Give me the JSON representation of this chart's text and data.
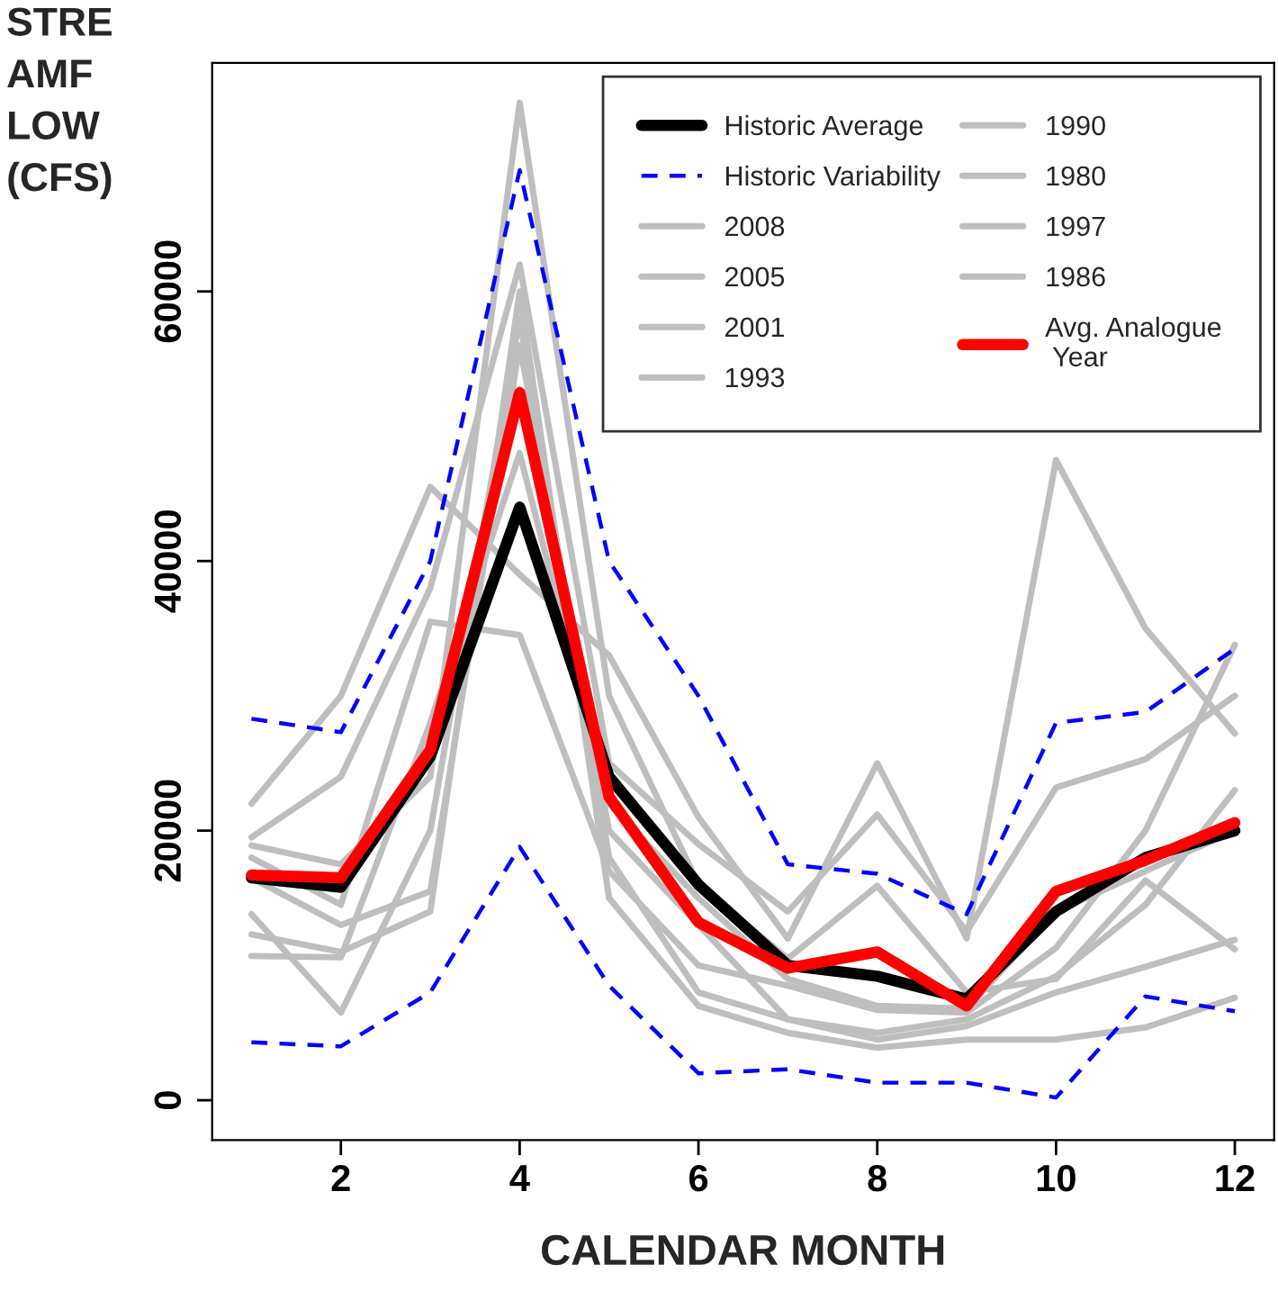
{
  "chart_data": {
    "type": "line",
    "xlabel": "CALENDAR MONTH",
    "ylabel": "STRE\nAMF\nLOW\n(CFS)",
    "x": [
      1,
      2,
      3,
      4,
      5,
      6,
      7,
      8,
      9,
      10,
      11,
      12
    ],
    "xlim": [
      0.56,
      12.44
    ],
    "xticks": [
      2,
      4,
      6,
      8,
      10,
      12
    ],
    "ylim": [
      -2960,
      76960
    ],
    "yticks": [
      0,
      20000,
      40000,
      60000
    ],
    "grid": false,
    "legend": "top right",
    "marker": "none",
    "series": [
      {
        "name": "Historic Average",
        "color": "#000000",
        "line_style": "solid",
        "values": [
          16500,
          15800,
          25500,
          44000,
          24000,
          16000,
          10000,
          9200,
          7500,
          14000,
          18000,
          20000
        ]
      },
      {
        "name": "Historic Variability",
        "color": "#0000ff",
        "line_style": "dashed",
        "values": [
          28300,
          27300,
          40000,
          69000,
          40000,
          30000,
          17500,
          16800,
          13800,
          28000,
          28800,
          33500
        ]
      },
      {
        "color": "#0000ff",
        "line_style": "dashed",
        "values": [
          4300,
          4000,
          8000,
          18800,
          8500,
          2000,
          2300,
          1300,
          1300,
          200,
          7700,
          6600
        ]
      },
      {
        "name": "2008",
        "color": "#bebebe",
        "line_style": "solid",
        "values": [
          22000,
          30000,
          45500,
          39000,
          33000,
          21000,
          12000,
          25000,
          12000,
          47500,
          35000,
          27200
        ]
      },
      {
        "name": "2005",
        "color": "#bebebe",
        "line_style": "solid",
        "values": [
          19500,
          24000,
          38000,
          62000,
          25000,
          19000,
          14000,
          21200,
          12500,
          23200,
          25300,
          30000
        ]
      },
      {
        "name": "2001",
        "color": "#bebebe",
        "line_style": "solid",
        "values": [
          18900,
          17500,
          24000,
          74000,
          30000,
          16000,
          10500,
          15900,
          8000,
          9000,
          16300,
          11200
        ]
      },
      {
        "name": "1993",
        "color": "#bebebe",
        "line_style": "solid",
        "values": [
          18000,
          14500,
          35500,
          34500,
          17000,
          10000,
          8500,
          6700,
          6500,
          11300,
          20000,
          33800
        ]
      },
      {
        "name": "1990",
        "color": "#bebebe",
        "line_style": "solid",
        "values": [
          16500,
          13000,
          15500,
          56000,
          20000,
          13000,
          6000,
          5000,
          6000,
          9200,
          14500,
          23000
        ]
      },
      {
        "name": "1980",
        "color": "#bebebe",
        "line_style": "solid",
        "values": [
          13800,
          6500,
          20000,
          58000,
          18000,
          8000,
          6000,
          4500,
          5500,
          8000,
          9900,
          11900
        ]
      },
      {
        "name": "1997",
        "color": "#bebebe",
        "line_style": "solid",
        "values": [
          12300,
          11000,
          14000,
          60000,
          15000,
          7000,
          5000,
          3900,
          4500,
          4500,
          5400,
          7600
        ]
      },
      {
        "name": "1986",
        "color": "#bebebe",
        "line_style": "solid",
        "values": [
          10700,
          10600,
          28000,
          48000,
          22000,
          15000,
          9000,
          7000,
          6800,
          14000,
          17000,
          20000
        ]
      },
      {
        "name": "Avg. Analogue\n Year",
        "color": "#ff0000",
        "line_style": "solid",
        "values": [
          16700,
          16500,
          26000,
          52500,
          22500,
          13200,
          9800,
          11000,
          7000,
          15500,
          17800,
          20600
        ]
      }
    ]
  }
}
